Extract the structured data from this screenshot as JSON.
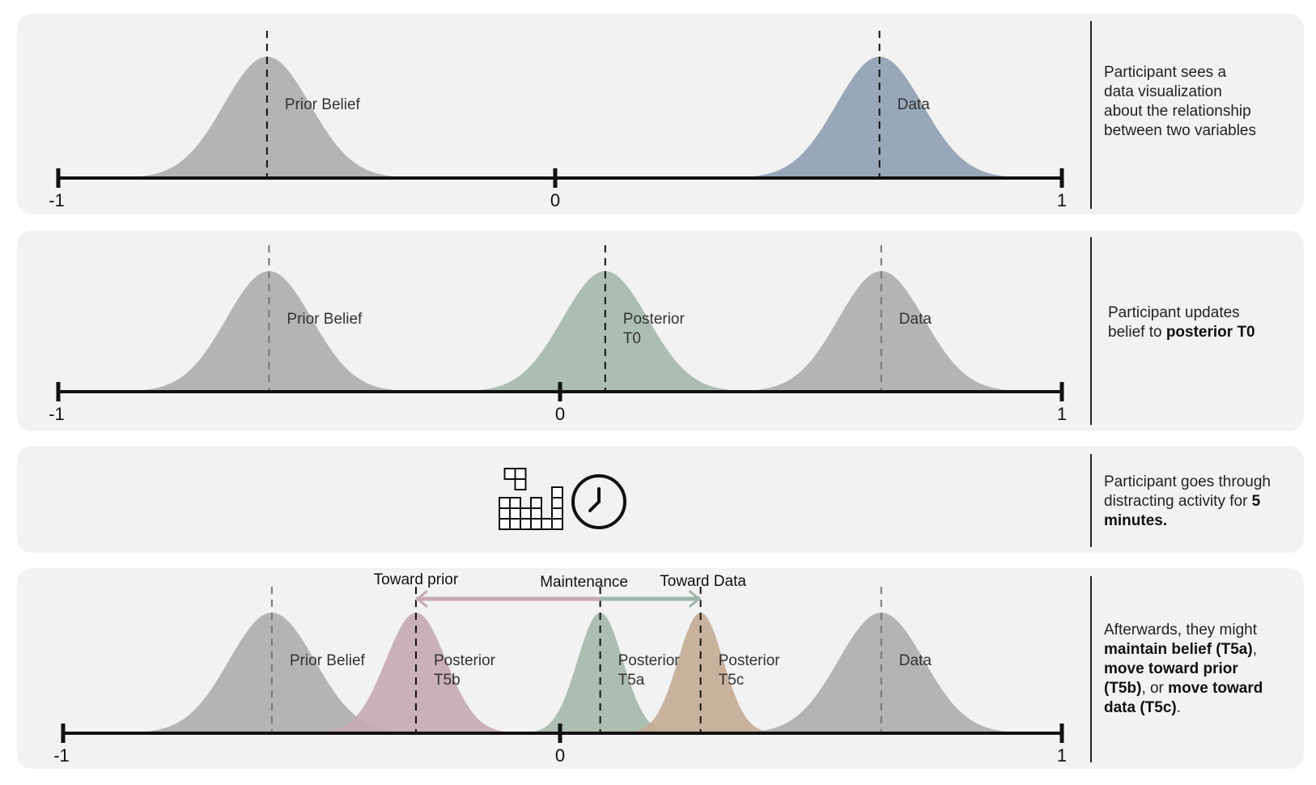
{
  "panels": [
    {
      "caption_lines": [
        [
          {
            "t": "Participant sees a"
          }
        ],
        [
          {
            "t": "data visualization"
          }
        ],
        [
          {
            "t": "about the relationship"
          }
        ],
        [
          {
            "t": "between two variables"
          }
        ]
      ],
      "axis": {
        "min_label": "-1",
        "zero_label": "0",
        "max_label": "1"
      },
      "curves": [
        {
          "mu": -0.58,
          "sd": 0.085,
          "color": "#adadad",
          "dash_color": "#111",
          "labels": [
            "Prior Belief"
          ]
        },
        {
          "mu": 0.64,
          "sd": 0.085,
          "color": "#8ea0b2",
          "dash_color": "#111",
          "labels": [
            "Data"
          ]
        }
      ]
    },
    {
      "caption_lines": [
        [
          {
            "t": "Participant updates"
          }
        ],
        [
          {
            "t": "belief to "
          },
          {
            "t": "posterior T0",
            "b": true
          }
        ]
      ],
      "axis": {
        "min_label": "-1",
        "zero_label": "0",
        "max_label": "1"
      },
      "curves": [
        {
          "mu": -0.58,
          "sd": 0.085,
          "color": "#adadad",
          "dash_color": "#777",
          "labels": [
            "Prior Belief"
          ]
        },
        {
          "mu": 0.09,
          "sd": 0.085,
          "color": "#a4b8aa",
          "dash_color": "#111",
          "labels": [
            "Posterior",
            "T0"
          ]
        },
        {
          "mu": 0.64,
          "sd": 0.085,
          "color": "#adadad",
          "dash_color": "#777",
          "labels": [
            "Data"
          ]
        }
      ]
    },
    {
      "caption_lines": [
        [
          {
            "t": "Participant goes through"
          }
        ],
        [
          {
            "t": "distracting activity for "
          },
          {
            "t": "5",
            "b": true
          }
        ],
        [
          {
            "t": "minutes.",
            "b": true
          }
        ]
      ],
      "icons": [
        "tetris-icon",
        "clock-icon"
      ]
    },
    {
      "caption_lines": [
        [
          {
            "t": "Afterwards, they might"
          }
        ],
        [
          {
            "t": "maintain belief (T5a)",
            "b": true
          },
          {
            "t": ","
          }
        ],
        [
          {
            "t": "move toward prior",
            "b": true
          }
        ],
        [
          {
            "t": "(T5b)",
            "b": true
          },
          {
            "t": ", or "
          },
          {
            "t": "move toward",
            "b": true
          }
        ],
        [
          {
            "t": "data (T5c)",
            "b": true
          },
          {
            "t": "."
          }
        ]
      ],
      "axis": {
        "min_label": "-1",
        "zero_label": "0",
        "max_label": "1"
      },
      "arrow": {
        "left_label": "Toward prior",
        "center_label": "Maintenance",
        "right_label": "Toward Data",
        "from": -0.29,
        "center": 0.08,
        "to": 0.28,
        "left_color": "#c5a9b1",
        "right_color": "#9fb6a9"
      },
      "curves": [
        {
          "mu": -0.58,
          "sd": 0.085,
          "color": "#adadad",
          "dash_color": "#777",
          "labels": [
            "Prior Belief"
          ]
        },
        {
          "mu": -0.29,
          "sd": 0.06,
          "color": "#c5a9b1",
          "dash_color": "#111",
          "labels": [
            "Posterior",
            "T5b"
          ]
        },
        {
          "mu": 0.08,
          "sd": 0.045,
          "color": "#a4b8aa",
          "dash_color": "#111",
          "labels": [
            "Posterior",
            "T5a"
          ]
        },
        {
          "mu": 0.28,
          "sd": 0.045,
          "color": "#c4ab93",
          "dash_color": "#111",
          "labels": [
            "Posterior",
            "T5c"
          ]
        },
        {
          "mu": 0.64,
          "sd": 0.085,
          "color": "#adadad",
          "dash_color": "#777",
          "labels": [
            "Data"
          ]
        }
      ]
    }
  ]
}
